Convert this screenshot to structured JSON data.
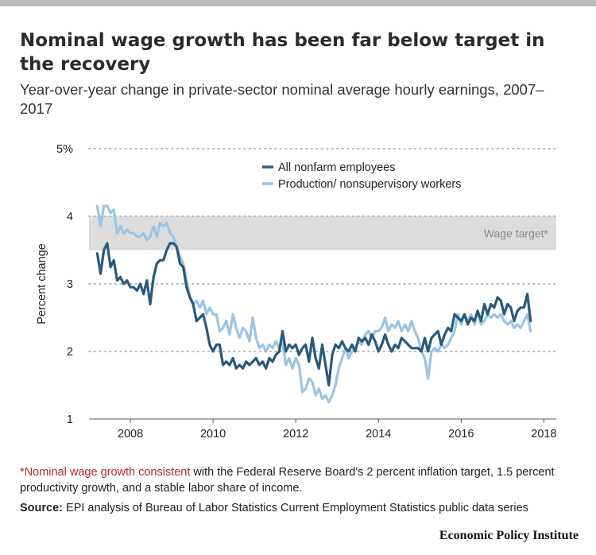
{
  "title": "Nominal wage growth has been far below target in the recovery",
  "subtitle": "Year-over-year change in private-sector nominal average hourly earnings, 2007–2017",
  "footnote": {
    "asterisk": "*",
    "highlight": "Nominal wage growth consistent",
    "text": " with the Federal Reserve Board's 2 percent inflation target, 1.5 percent productivity growth, and a stable labor share of income."
  },
  "source": {
    "label": "Source:",
    "text": " EPI analysis of Bureau of Labor Statistics Current Employment Statistics public data series"
  },
  "brand": "Economic Policy Institute",
  "colors": {
    "nonfarm": "#2a5a7a",
    "production": "#9cc4e4",
    "band": "#dcdcdc",
    "grid": "#bbbbbb",
    "text": "#222222"
  },
  "chart_data": {
    "type": "line",
    "ylabel": "Percent change",
    "xlim": [
      2007.0,
      2018.3
    ],
    "ylim": [
      1,
      5
    ],
    "y_ticks": [
      {
        "value": 1,
        "label": "1"
      },
      {
        "value": 2,
        "label": "2"
      },
      {
        "value": 3,
        "label": "3"
      },
      {
        "value": 4,
        "label": "4"
      },
      {
        "value": 5,
        "label": "5%"
      }
    ],
    "x_ticks": [
      {
        "value": 2008,
        "label": "2008"
      },
      {
        "value": 2010,
        "label": "2010"
      },
      {
        "value": 2012,
        "label": "2012"
      },
      {
        "value": 2014,
        "label": "2014"
      },
      {
        "value": 2016,
        "label": "2016"
      },
      {
        "value": 2018,
        "label": "2018"
      }
    ],
    "grid": true,
    "legend": "top",
    "band": {
      "from": 3.5,
      "to": 4.0,
      "label": "Wage target*"
    },
    "series": [
      {
        "name": "All nonfarm employees",
        "colorKey": "nonfarm",
        "points": [
          [
            2007.2,
            3.45
          ],
          [
            2007.28,
            3.15
          ],
          [
            2007.36,
            3.5
          ],
          [
            2007.44,
            3.6
          ],
          [
            2007.52,
            3.25
          ],
          [
            2007.6,
            3.35
          ],
          [
            2007.68,
            3.05
          ],
          [
            2007.76,
            3.1
          ],
          [
            2007.84,
            3.0
          ],
          [
            2007.92,
            3.05
          ],
          [
            2008.0,
            2.95
          ],
          [
            2008.08,
            2.95
          ],
          [
            2008.16,
            2.9
          ],
          [
            2008.24,
            3.0
          ],
          [
            2008.32,
            2.85
          ],
          [
            2008.4,
            3.05
          ],
          [
            2008.48,
            2.7
          ],
          [
            2008.56,
            3.1
          ],
          [
            2008.64,
            3.3
          ],
          [
            2008.72,
            3.35
          ],
          [
            2008.8,
            3.35
          ],
          [
            2008.88,
            3.5
          ],
          [
            2008.96,
            3.6
          ],
          [
            2009.04,
            3.6
          ],
          [
            2009.12,
            3.55
          ],
          [
            2009.2,
            3.3
          ],
          [
            2009.28,
            3.25
          ],
          [
            2009.36,
            2.95
          ],
          [
            2009.44,
            2.8
          ],
          [
            2009.52,
            2.7
          ],
          [
            2009.6,
            2.45
          ],
          [
            2009.68,
            2.5
          ],
          [
            2009.76,
            2.55
          ],
          [
            2009.84,
            2.35
          ],
          [
            2009.92,
            2.1
          ],
          [
            2010.0,
            2.0
          ],
          [
            2010.08,
            2.1
          ],
          [
            2010.16,
            2.1
          ],
          [
            2010.24,
            1.8
          ],
          [
            2010.32,
            1.85
          ],
          [
            2010.4,
            1.8
          ],
          [
            2010.48,
            1.9
          ],
          [
            2010.56,
            1.75
          ],
          [
            2010.64,
            1.8
          ],
          [
            2010.72,
            1.75
          ],
          [
            2010.8,
            1.85
          ],
          [
            2010.88,
            1.8
          ],
          [
            2010.96,
            1.85
          ],
          [
            2011.04,
            1.9
          ],
          [
            2011.12,
            1.8
          ],
          [
            2011.2,
            1.85
          ],
          [
            2011.28,
            1.75
          ],
          [
            2011.36,
            1.9
          ],
          [
            2011.44,
            1.85
          ],
          [
            2011.52,
            1.95
          ],
          [
            2011.6,
            2.0
          ],
          [
            2011.68,
            2.3
          ],
          [
            2011.76,
            2.0
          ],
          [
            2011.84,
            2.1
          ],
          [
            2011.92,
            2.05
          ],
          [
            2012.0,
            2.1
          ],
          [
            2012.08,
            1.95
          ],
          [
            2012.16,
            2.05
          ],
          [
            2012.24,
            2.1
          ],
          [
            2012.32,
            1.85
          ],
          [
            2012.4,
            2.2
          ],
          [
            2012.48,
            1.9
          ],
          [
            2012.56,
            1.75
          ],
          [
            2012.64,
            2.1
          ],
          [
            2012.72,
            1.8
          ],
          [
            2012.8,
            1.5
          ],
          [
            2012.88,
            1.95
          ],
          [
            2012.96,
            2.1
          ],
          [
            2013.04,
            2.05
          ],
          [
            2013.12,
            2.15
          ],
          [
            2013.2,
            2.05
          ],
          [
            2013.28,
            2.0
          ],
          [
            2013.36,
            2.1
          ],
          [
            2013.44,
            2.0
          ],
          [
            2013.52,
            2.2
          ],
          [
            2013.6,
            2.15
          ],
          [
            2013.68,
            2.2
          ],
          [
            2013.76,
            2.1
          ],
          [
            2013.84,
            2.25
          ],
          [
            2013.92,
            2.15
          ],
          [
            2014.0,
            2.0
          ],
          [
            2014.08,
            2.1
          ],
          [
            2014.16,
            2.25
          ],
          [
            2014.24,
            2.1
          ],
          [
            2014.32,
            2.0
          ],
          [
            2014.4,
            2.1
          ],
          [
            2014.48,
            2.05
          ],
          [
            2014.56,
            2.2
          ],
          [
            2014.64,
            2.15
          ],
          [
            2014.72,
            2.1
          ],
          [
            2014.8,
            2.05
          ],
          [
            2014.88,
            2.05
          ],
          [
            2014.96,
            2.05
          ],
          [
            2015.04,
            2.0
          ],
          [
            2015.12,
            2.2
          ],
          [
            2015.2,
            2.0
          ],
          [
            2015.28,
            2.2
          ],
          [
            2015.36,
            2.25
          ],
          [
            2015.44,
            2.3
          ],
          [
            2015.52,
            2.1
          ],
          [
            2015.6,
            2.25
          ],
          [
            2015.68,
            2.35
          ],
          [
            2015.76,
            2.3
          ],
          [
            2015.84,
            2.55
          ],
          [
            2015.92,
            2.5
          ],
          [
            2016.0,
            2.45
          ],
          [
            2016.08,
            2.55
          ],
          [
            2016.16,
            2.4
          ],
          [
            2016.24,
            2.5
          ],
          [
            2016.32,
            2.45
          ],
          [
            2016.4,
            2.6
          ],
          [
            2016.48,
            2.45
          ],
          [
            2016.56,
            2.7
          ],
          [
            2016.64,
            2.55
          ],
          [
            2016.72,
            2.7
          ],
          [
            2016.8,
            2.65
          ],
          [
            2016.88,
            2.8
          ],
          [
            2016.96,
            2.75
          ],
          [
            2017.04,
            2.55
          ],
          [
            2017.12,
            2.7
          ],
          [
            2017.2,
            2.65
          ],
          [
            2017.28,
            2.45
          ],
          [
            2017.36,
            2.6
          ],
          [
            2017.44,
            2.65
          ],
          [
            2017.52,
            2.65
          ],
          [
            2017.6,
            2.85
          ],
          [
            2017.68,
            2.45
          ]
        ]
      },
      {
        "name": "Production/ nonsupervisory workers",
        "colorKey": "production",
        "points": [
          [
            2007.2,
            4.15
          ],
          [
            2007.28,
            3.85
          ],
          [
            2007.36,
            4.15
          ],
          [
            2007.44,
            4.15
          ],
          [
            2007.52,
            4.05
          ],
          [
            2007.6,
            4.1
          ],
          [
            2007.68,
            3.75
          ],
          [
            2007.76,
            3.85
          ],
          [
            2007.84,
            3.75
          ],
          [
            2007.92,
            3.8
          ],
          [
            2008.0,
            3.75
          ],
          [
            2008.08,
            3.75
          ],
          [
            2008.16,
            3.7
          ],
          [
            2008.24,
            3.7
          ],
          [
            2008.32,
            3.75
          ],
          [
            2008.4,
            3.65
          ],
          [
            2008.48,
            3.7
          ],
          [
            2008.56,
            3.85
          ],
          [
            2008.64,
            3.7
          ],
          [
            2008.72,
            3.9
          ],
          [
            2008.8,
            3.85
          ],
          [
            2008.88,
            3.9
          ],
          [
            2008.96,
            3.75
          ],
          [
            2009.04,
            3.7
          ],
          [
            2009.12,
            3.55
          ],
          [
            2009.2,
            3.4
          ],
          [
            2009.28,
            3.3
          ],
          [
            2009.36,
            3.05
          ],
          [
            2009.44,
            2.8
          ],
          [
            2009.52,
            2.7
          ],
          [
            2009.6,
            2.75
          ],
          [
            2009.68,
            2.65
          ],
          [
            2009.76,
            2.75
          ],
          [
            2009.84,
            2.55
          ],
          [
            2009.92,
            2.65
          ],
          [
            2010.0,
            2.55
          ],
          [
            2010.08,
            2.55
          ],
          [
            2010.16,
            2.3
          ],
          [
            2010.24,
            2.35
          ],
          [
            2010.32,
            2.45
          ],
          [
            2010.4,
            2.25
          ],
          [
            2010.48,
            2.55
          ],
          [
            2010.56,
            2.35
          ],
          [
            2010.64,
            2.2
          ],
          [
            2010.72,
            2.35
          ],
          [
            2010.8,
            2.3
          ],
          [
            2010.88,
            2.15
          ],
          [
            2010.96,
            2.5
          ],
          [
            2011.04,
            2.2
          ],
          [
            2011.12,
            2.05
          ],
          [
            2011.2,
            2.1
          ],
          [
            2011.28,
            2.0
          ],
          [
            2011.36,
            2.1
          ],
          [
            2011.44,
            2.05
          ],
          [
            2011.52,
            2.15
          ],
          [
            2011.6,
            2.05
          ],
          [
            2011.68,
            2.15
          ],
          [
            2011.76,
            1.8
          ],
          [
            2011.84,
            1.9
          ],
          [
            2011.92,
            1.75
          ],
          [
            2012.0,
            1.9
          ],
          [
            2012.08,
            1.8
          ],
          [
            2012.16,
            1.4
          ],
          [
            2012.24,
            1.45
          ],
          [
            2012.32,
            1.6
          ],
          [
            2012.4,
            1.55
          ],
          [
            2012.48,
            1.35
          ],
          [
            2012.56,
            1.45
          ],
          [
            2012.64,
            1.3
          ],
          [
            2012.72,
            1.35
          ],
          [
            2012.8,
            1.25
          ],
          [
            2012.88,
            1.35
          ],
          [
            2012.96,
            1.5
          ],
          [
            2013.04,
            1.75
          ],
          [
            2013.12,
            1.9
          ],
          [
            2013.2,
            2.05
          ],
          [
            2013.28,
            1.9
          ],
          [
            2013.36,
            2.0
          ],
          [
            2013.44,
            2.05
          ],
          [
            2013.52,
            2.15
          ],
          [
            2013.6,
            2.1
          ],
          [
            2013.68,
            2.25
          ],
          [
            2013.76,
            2.3
          ],
          [
            2013.84,
            2.2
          ],
          [
            2013.92,
            2.3
          ],
          [
            2014.0,
            2.3
          ],
          [
            2014.08,
            2.35
          ],
          [
            2014.16,
            2.5
          ],
          [
            2014.24,
            2.3
          ],
          [
            2014.32,
            2.4
          ],
          [
            2014.4,
            2.35
          ],
          [
            2014.48,
            2.45
          ],
          [
            2014.56,
            2.3
          ],
          [
            2014.64,
            2.4
          ],
          [
            2014.72,
            2.3
          ],
          [
            2014.8,
            2.45
          ],
          [
            2014.88,
            2.3
          ],
          [
            2014.96,
            2.2
          ],
          [
            2015.04,
            2.0
          ],
          [
            2015.12,
            1.9
          ],
          [
            2015.2,
            1.6
          ],
          [
            2015.28,
            2.0
          ],
          [
            2015.36,
            2.05
          ],
          [
            2015.44,
            2.0
          ],
          [
            2015.52,
            2.1
          ],
          [
            2015.6,
            2.05
          ],
          [
            2015.68,
            2.1
          ],
          [
            2015.76,
            2.2
          ],
          [
            2015.84,
            2.3
          ],
          [
            2015.92,
            2.55
          ],
          [
            2016.0,
            2.4
          ],
          [
            2016.08,
            2.55
          ],
          [
            2016.16,
            2.45
          ],
          [
            2016.24,
            2.55
          ],
          [
            2016.32,
            2.4
          ],
          [
            2016.4,
            2.6
          ],
          [
            2016.48,
            2.4
          ],
          [
            2016.56,
            2.45
          ],
          [
            2016.64,
            2.55
          ],
          [
            2016.72,
            2.5
          ],
          [
            2016.8,
            2.55
          ],
          [
            2016.88,
            2.5
          ],
          [
            2016.96,
            2.55
          ],
          [
            2017.04,
            2.45
          ],
          [
            2017.12,
            2.4
          ],
          [
            2017.2,
            2.45
          ],
          [
            2017.28,
            2.35
          ],
          [
            2017.36,
            2.4
          ],
          [
            2017.44,
            2.35
          ],
          [
            2017.52,
            2.45
          ],
          [
            2017.6,
            2.55
          ],
          [
            2017.68,
            2.3
          ]
        ]
      }
    ]
  }
}
